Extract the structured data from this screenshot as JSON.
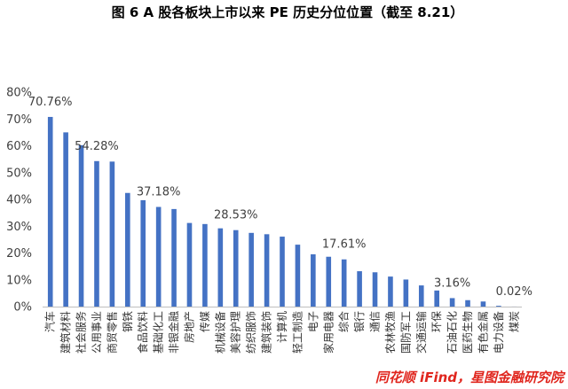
{
  "chart_data": {
    "type": "bar",
    "title": "图 6 A 股各板块上市以来 PE 历史分位位置（截至 8.21）",
    "categories": [
      "汽车",
      "建筑材料",
      "社会服务",
      "公用事业",
      "商贸零售",
      "钢铁",
      "食品饮料",
      "基础化工",
      "非银金融",
      "房地产",
      "传媒",
      "机械设备",
      "美容护理",
      "纺织服饰",
      "建筑装饰",
      "计算机",
      "轻工制造",
      "电子",
      "家用电器",
      "综合",
      "银行",
      "通信",
      "农林牧渔",
      "国防军工",
      "交通运输",
      "环保",
      "石油石化",
      "医药生物",
      "有色金属",
      "电力设备",
      "煤炭"
    ],
    "values": [
      70.76,
      65.0,
      60.2,
      54.28,
      54.1,
      42.4,
      39.7,
      37.18,
      36.4,
      31.2,
      30.8,
      29.2,
      28.53,
      27.5,
      27.0,
      26.1,
      23.1,
      19.5,
      18.6,
      17.61,
      13.2,
      12.8,
      11.2,
      10.1,
      7.9,
      6.0,
      3.16,
      2.4,
      1.9,
      0.3,
      0.02
    ],
    "data_labels": [
      {
        "index": 0,
        "text": "70.76%"
      },
      {
        "index": 3,
        "text": "54.28%"
      },
      {
        "index": 7,
        "text": "37.18%"
      },
      {
        "index": 12,
        "text": "28.53%"
      },
      {
        "index": 19,
        "text": "17.61%"
      },
      {
        "index": 26,
        "text": "3.16%"
      },
      {
        "index": 30,
        "text": "0.02%"
      }
    ],
    "ylim": [
      0,
      80
    ],
    "yticks": [
      0,
      10,
      20,
      30,
      40,
      50,
      60,
      70,
      80
    ],
    "ytick_labels": [
      "0%",
      "10%",
      "20%",
      "30%",
      "40%",
      "50%",
      "60%",
      "70%",
      "80%"
    ],
    "grid": false,
    "legend": "none",
    "colors": {
      "bar": "#4472C4"
    }
  },
  "source": {
    "text": "同花顺 iFind，星图金融研究院",
    "color": "#E0261E"
  }
}
